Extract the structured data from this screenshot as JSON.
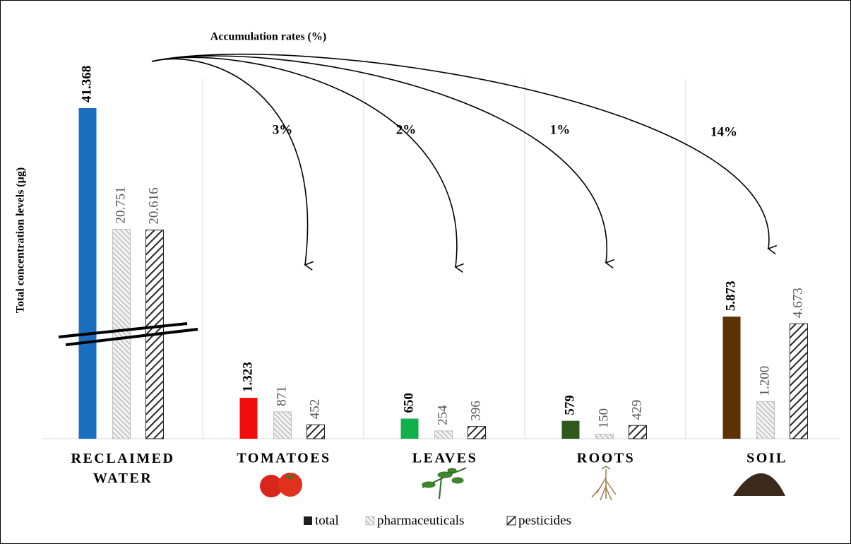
{
  "chart_data": {
    "type": "bar",
    "y_label": "Total concentration levels (µg)",
    "categories": [
      "RECLAIMED WATER",
      "TOMATOES",
      "LEAVES",
      "ROOTS",
      "SOIL"
    ],
    "axis_break": true,
    "series": [
      {
        "name": "total",
        "color": "#1f1f1f",
        "colors": [
          "#1b6fc0",
          "#f20d0d",
          "#12b04b",
          "#2e5a1d",
          "#5e3200"
        ],
        "values": [
          41368,
          1323,
          650,
          579,
          5873
        ],
        "value_labels": [
          "41.368",
          "1.323",
          "650",
          "579",
          "5.873"
        ]
      },
      {
        "name": "pharmaceuticals",
        "color": "#bfbfbf",
        "values": [
          20751,
          871,
          254,
          150,
          1200
        ],
        "value_labels": [
          "20.751",
          "871",
          "254",
          "150",
          "1.200"
        ]
      },
      {
        "name": "pesticides",
        "color": "#333333",
        "values": [
          20616,
          452,
          396,
          429,
          4673
        ],
        "value_labels": [
          "20.616",
          "452",
          "396",
          "429",
          "4.673"
        ]
      }
    ],
    "accumulation": {
      "title": "Accumulation rates (%)",
      "values": [
        3,
        2,
        1,
        14
      ],
      "value_labels": [
        "3%",
        "2%",
        "1%",
        "14%"
      ]
    }
  }
}
